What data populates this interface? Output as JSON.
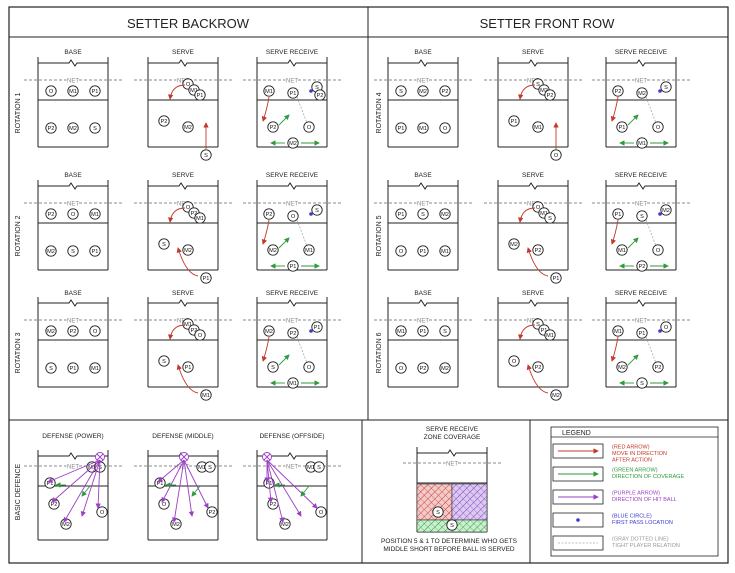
{
  "colors": {
    "move": "#c0392b",
    "coverage": "#2e9a3a",
    "hit": "#9b3fc4",
    "first_pass": "#3a3acc",
    "tight": "#aaaaaa",
    "line": "#222222"
  },
  "headers": {
    "left": "SETTER BACKROW",
    "right": "SETTER FRONT ROW"
  },
  "column_titles": {
    "base": "BASE",
    "serve": "SERVE",
    "serve_receive": "SERVE RECEIVE"
  },
  "net_label": "NET",
  "rotations": [
    {
      "label": "ROTATION 1"
    },
    {
      "label": "ROTATION 2"
    },
    {
      "label": "ROTATION 3"
    },
    {
      "label": "ROTATION 4"
    },
    {
      "label": "ROTATION 5"
    },
    {
      "label": "ROTATION 6"
    }
  ],
  "defense": {
    "row_label": "BASIC DEFENCE",
    "titles": [
      "DEFENSE (POWER)",
      "DEFENSE (MIDDLE)",
      "DEFENSE (OFFSIDE)"
    ]
  },
  "coverage_box": {
    "title": [
      "SERVE RECEIVE",
      "ZONE COVERAGE"
    ],
    "note": [
      "POSITION 5 & 1 TO DETERMINE WHO GETS",
      "MIDDLE SHORT BEFORE BALL IS SERVED"
    ]
  },
  "legend": {
    "title": "LEGEND",
    "items": [
      {
        "kind": "move",
        "lines": [
          "(RED ARROW)",
          "MOVE IN DIRECTION",
          "AFTER ACTION"
        ]
      },
      {
        "kind": "coverage",
        "lines": [
          "(GREEN ARROW)",
          "DIRECTION OF COVERAGE"
        ]
      },
      {
        "kind": "hit",
        "lines": [
          "(PURPLE ARROW)",
          "DIRECTION OF HIT BALL"
        ]
      },
      {
        "kind": "first_pass",
        "lines": [
          "(BLUE CIRCLE)",
          "FIRST PASS LOCATION"
        ]
      },
      {
        "kind": "tight",
        "lines": [
          "(GRAY DOTTED LINE)",
          "TIGHT PLAYER RELATION"
        ]
      }
    ]
  },
  "players": {
    "rot1_base": [
      "O",
      "M1",
      "P1",
      "P2",
      "M2",
      "S"
    ],
    "rot2_base": [
      "P2",
      "O",
      "M1",
      "M2",
      "S",
      "P1"
    ],
    "rot3_base": [
      "M2",
      "P2",
      "O",
      "S",
      "P1",
      "M1"
    ],
    "rot4_base": [
      "S",
      "M2",
      "P2",
      "P1",
      "M1",
      "O"
    ],
    "rot5_base": [
      "P1",
      "S",
      "M2",
      "O",
      "P1",
      "M1"
    ],
    "rot6_base": [
      "M1",
      "P1",
      "S",
      "O",
      "P2",
      "M2"
    ],
    "rot1_serve": [
      "O",
      "M1",
      "P1",
      "P2",
      "M2",
      "S"
    ],
    "rot1_sr": [
      "M1",
      "P1",
      "S",
      "P2",
      "O",
      "M2",
      "P2"
    ],
    "rot2_serve": [
      "O",
      "P2",
      "M1",
      "S",
      "M2",
      "P1"
    ],
    "rot2_sr": [
      "P2",
      "O",
      "S",
      "M2",
      "M1",
      "P1"
    ],
    "rot3_serve": [
      "M1",
      "P2",
      "O",
      "S",
      "P1",
      "M1"
    ],
    "rot3_sr": [
      "M2",
      "P2",
      "P1",
      "S",
      "O",
      "M1"
    ],
    "rot4_serve": [
      "S",
      "M2",
      "P2",
      "P1",
      "M1",
      "O"
    ],
    "rot4_sr": [
      "P2",
      "M2",
      "S",
      "P1",
      "O",
      "M1"
    ],
    "rot5_serve": [
      "O",
      "M1",
      "S",
      "M2",
      "P2",
      "P1"
    ],
    "rot5_sr": [
      "P1",
      "S",
      "M2",
      "M1",
      "O",
      "P2"
    ],
    "rot6_serve": [
      "S",
      "P1",
      "M1",
      "O",
      "P2",
      "M2"
    ],
    "rot6_sr": [
      "M1",
      "P1",
      "O",
      "M2",
      "P2",
      "S"
    ],
    "def_power": [
      "M1",
      "S",
      "P1",
      "O",
      "P2",
      "M2"
    ],
    "def_middle": [
      "M1",
      "S",
      "P1",
      "P2",
      "O",
      "M2"
    ],
    "def_offside": [
      "M1",
      "S",
      "P1",
      "O",
      "P2",
      "M2"
    ],
    "zone": [
      "S",
      "S"
    ]
  }
}
